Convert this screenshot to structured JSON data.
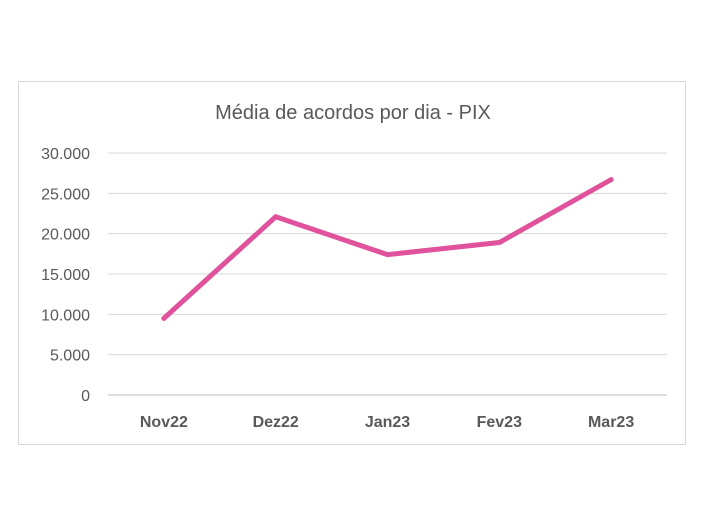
{
  "chart_data": {
    "type": "line",
    "title": "Média de acordos por dia - PIX",
    "xlabel": "",
    "ylabel": "",
    "categories": [
      "Nov22",
      "Dez22",
      "Jan23",
      "Fev23",
      "Mar23"
    ],
    "series": [
      {
        "values": [
          9500,
          22100,
          17400,
          18900,
          26700
        ],
        "color": "#e0529c"
      }
    ],
    "ylim": [
      0,
      30000
    ],
    "yticks": [
      0,
      5000,
      10000,
      15000,
      20000,
      25000,
      30000
    ],
    "ytick_labels": [
      "0",
      "5.000",
      "10.000",
      "15.000",
      "20.000",
      "25.000",
      "30.000"
    ],
    "grid": true,
    "legend": "none",
    "gridline_color": "#d9d9d9",
    "axis_color": "#bfbfbf"
  }
}
